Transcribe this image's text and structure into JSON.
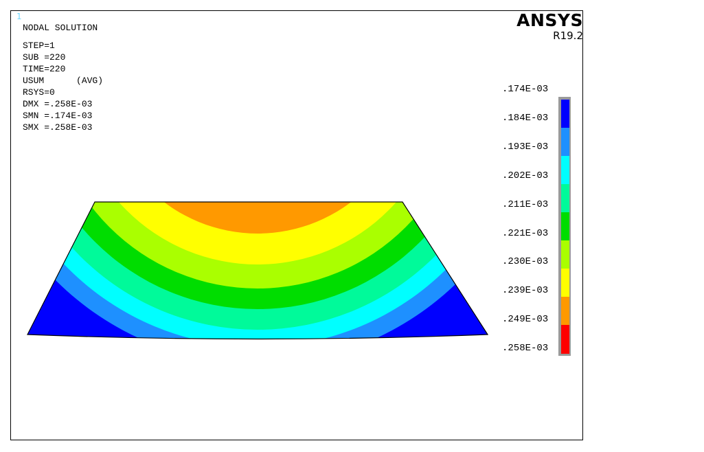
{
  "window_number": "1",
  "info": {
    "title": "NODAL SOLUTION",
    "step": "STEP=1",
    "sub": "SUB =220",
    "time": "TIME=220",
    "item": "USUM      (AVG)",
    "rsys": "RSYS=0",
    "dmx": "DMX =.258E-03",
    "smn": "SMN =.174E-03",
    "smx": "SMX =.258E-03"
  },
  "brand": {
    "name": "ANSYS",
    "release": "R19.2"
  },
  "legend": {
    "labels": [
      ".174E-03",
      ".184E-03",
      ".193E-03",
      ".202E-03",
      ".211E-03",
      ".221E-03",
      ".230E-03",
      ".239E-03",
      ".249E-03",
      ".258E-03"
    ],
    "colors": [
      "#0000ff",
      "#1e90ff",
      "#00ffff",
      "#00fa9a",
      "#00dd00",
      "#aaff00",
      "#ffff00",
      "#ff9900",
      "#ff0000"
    ]
  }
}
